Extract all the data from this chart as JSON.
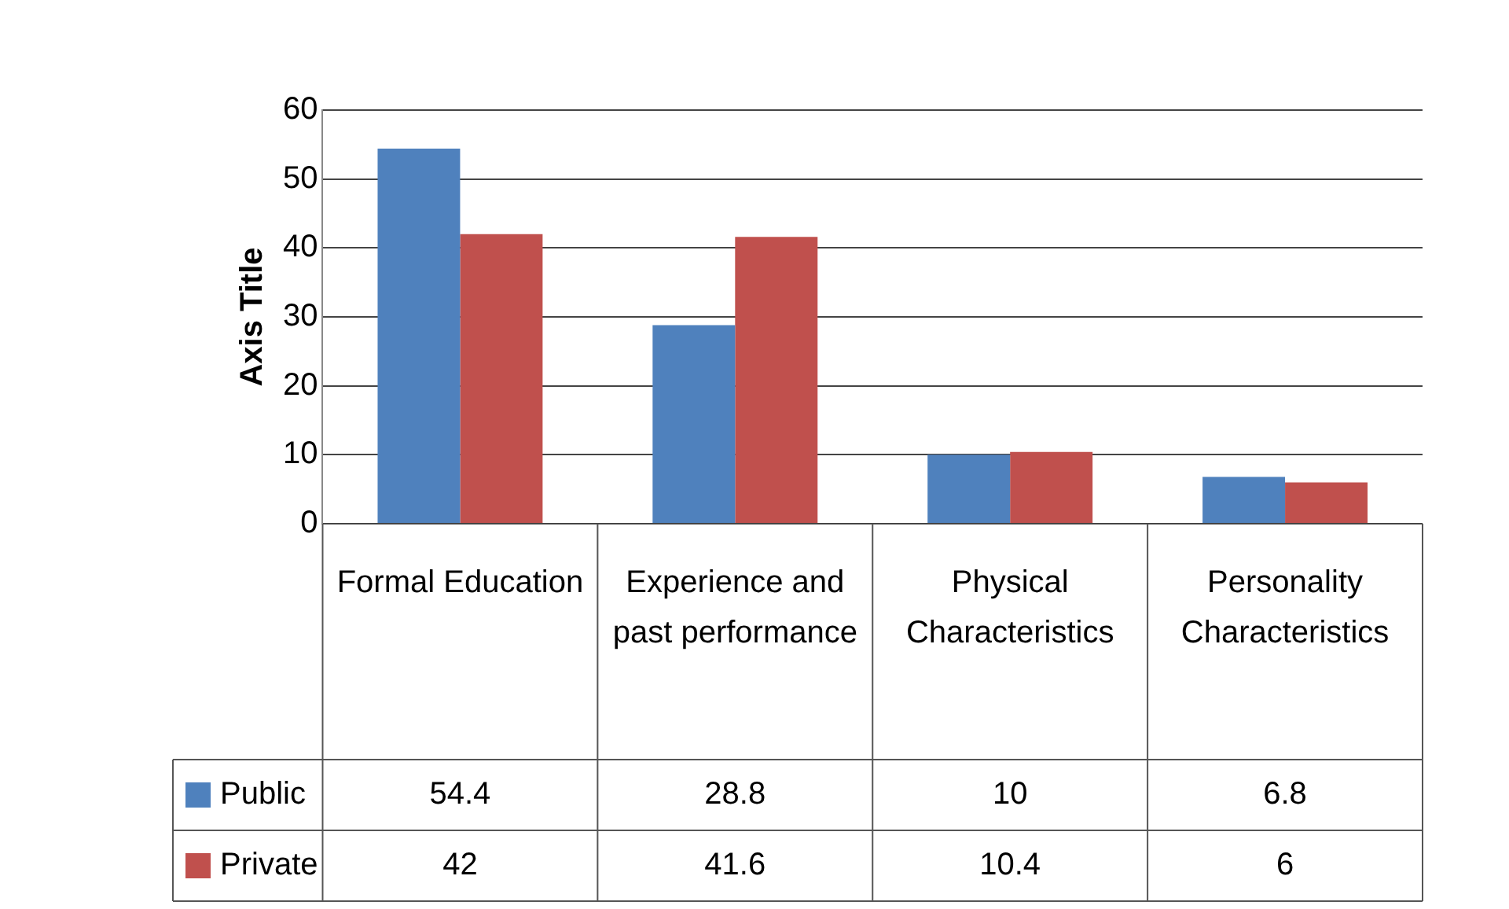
{
  "chart_data": {
    "type": "bar",
    "ylabel": "Axis Title",
    "categories": [
      "Formal Education",
      "Experience and past performance",
      "Physical Characteristics",
      "Personality Characteristics"
    ],
    "series": [
      {
        "name": "Public",
        "color": "#4f81bd",
        "values": [
          54.4,
          28.8,
          10,
          6.8
        ]
      },
      {
        "name": "Private",
        "color": "#c0504d",
        "values": [
          42,
          41.6,
          10.4,
          6
        ]
      }
    ],
    "ylim": [
      0,
      60
    ],
    "yticks": [
      0,
      10,
      20,
      30,
      40,
      50,
      60
    ],
    "grid": "y",
    "legend": "bottom",
    "data_labels": true
  }
}
